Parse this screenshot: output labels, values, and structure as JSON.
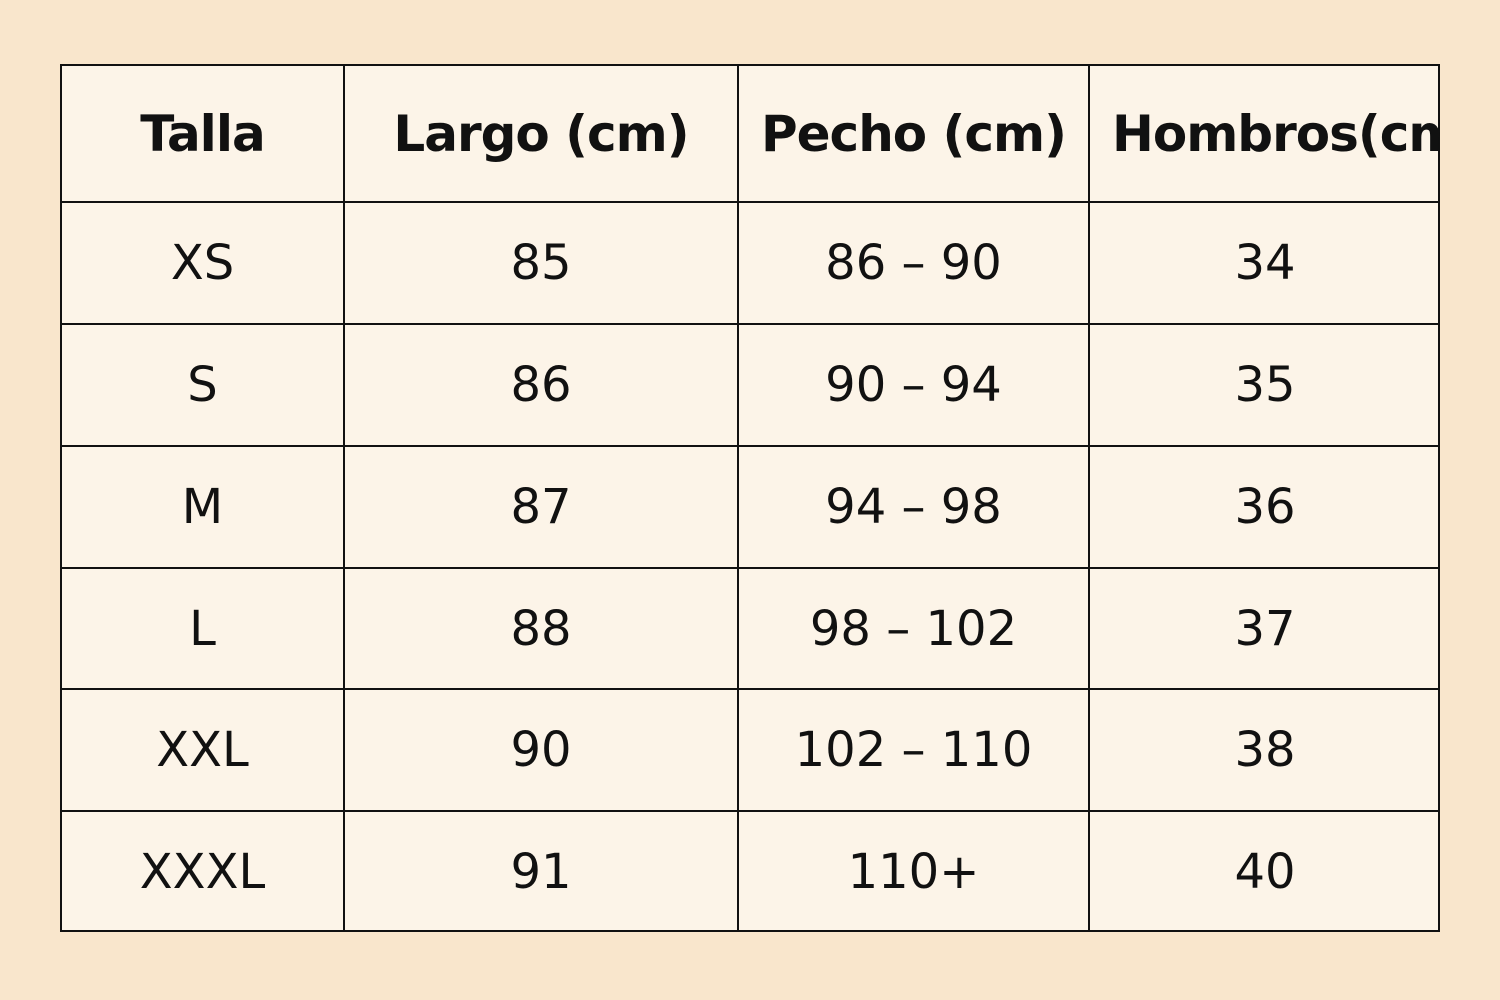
{
  "table": {
    "header": [
      "Talla",
      "Largo (cm)",
      "Pecho (cm)",
      "Hombros(cm"
    ],
    "rows": [
      [
        "XS",
        "85",
        "86 – 90",
        "34"
      ],
      [
        "S",
        "86",
        "90 – 94",
        "35"
      ],
      [
        "M",
        "87",
        "94 – 98",
        "36"
      ],
      [
        "L",
        "88",
        "98 – 102",
        "37"
      ],
      [
        "XXL",
        "90",
        "102 – 110",
        "38"
      ],
      [
        "XXXL",
        "91",
        "110+",
        "40"
      ]
    ]
  }
}
